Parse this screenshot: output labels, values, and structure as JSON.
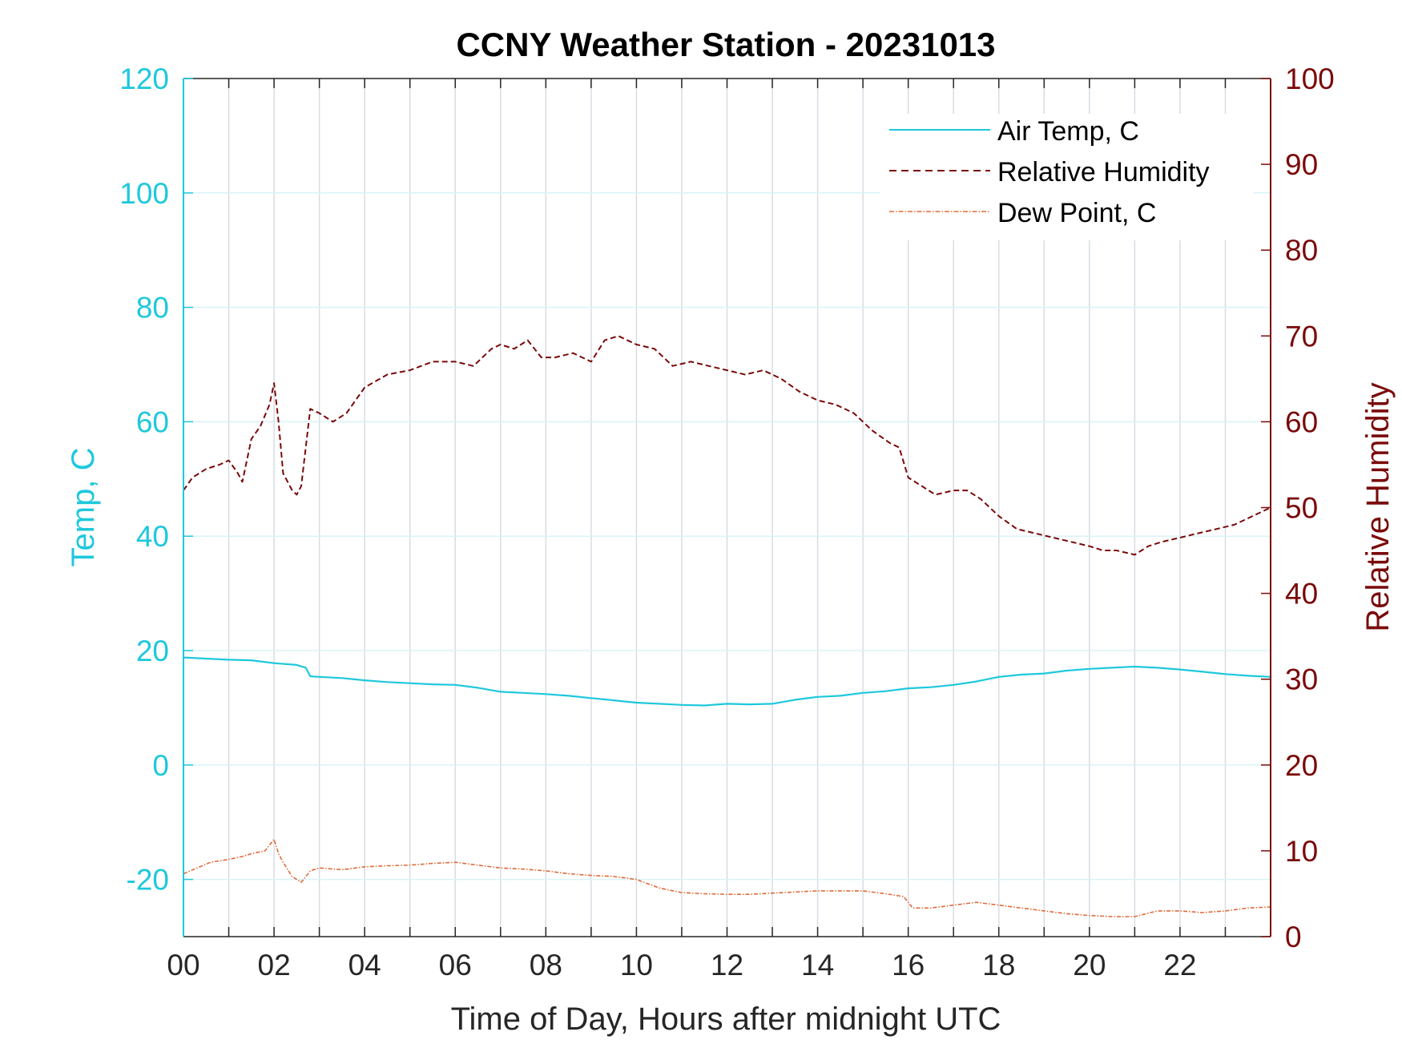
{
  "chart_data": {
    "type": "line",
    "title": "CCNY Weather Station - 20231013",
    "xlabel": "Time of Day, Hours after midnight UTC",
    "ylabel_left": "Temp, C",
    "ylabel_right": "Relative Humidity",
    "xlim": [
      0,
      24
    ],
    "ylim_left": [
      -30,
      120
    ],
    "ylim_right": [
      0,
      100
    ],
    "x_ticks": [
      0,
      2,
      4,
      6,
      8,
      10,
      12,
      14,
      16,
      18,
      20,
      22
    ],
    "x_tick_labels": [
      "00",
      "02",
      "04",
      "06",
      "08",
      "10",
      "12",
      "14",
      "16",
      "18",
      "20",
      "22"
    ],
    "y_left_ticks": [
      120,
      100,
      80,
      60,
      40,
      20,
      0,
      -20
    ],
    "y_left_tick_labels": [
      "120",
      "100",
      "80",
      "60",
      "40",
      "20",
      "0",
      "-20"
    ],
    "y_right_ticks": [
      100,
      90,
      80,
      70,
      60,
      50,
      40,
      30,
      20,
      10,
      0
    ],
    "y_right_tick_labels": [
      "100",
      "90",
      "80",
      "70",
      "60",
      "50",
      "40",
      "30",
      "20",
      "10",
      "0"
    ],
    "grid": true,
    "legend_position": "top-right",
    "colors": {
      "temp": "#1ec8dc",
      "rh": "#7a0a0a",
      "dew": "#e06a3a",
      "grid_v": "#d6dde3",
      "grid_h": "#d9f3f8"
    },
    "series": [
      {
        "name": "Air Temp, C",
        "axis": "left",
        "style": "solid",
        "x": [
          0,
          0.5,
          1,
          1.5,
          2,
          2.5,
          2.7,
          2.8,
          3,
          3.5,
          4,
          4.5,
          5,
          5.5,
          6,
          6.5,
          7,
          7.5,
          8,
          8.5,
          9,
          9.5,
          10,
          10.5,
          11,
          11.5,
          12,
          12.5,
          13,
          13.5,
          14,
          14.5,
          15,
          15.5,
          16,
          16.5,
          17,
          17.5,
          18,
          18.5,
          19,
          19.5,
          20,
          20.5,
          21,
          21.5,
          22,
          22.5,
          23,
          23.5,
          24
        ],
        "values": [
          18.8,
          18.6,
          18.4,
          18.3,
          17.8,
          17.5,
          17.0,
          15.5,
          15.4,
          15.2,
          14.8,
          14.5,
          14.3,
          14.1,
          14.0,
          13.5,
          12.8,
          12.6,
          12.4,
          12.1,
          11.7,
          11.3,
          10.9,
          10.7,
          10.5,
          10.4,
          10.7,
          10.6,
          10.7,
          11.4,
          11.9,
          12.1,
          12.6,
          12.9,
          13.4,
          13.6,
          14.0,
          14.6,
          15.4,
          15.8,
          16.0,
          16.5,
          16.8,
          17.0,
          17.2,
          17.0,
          16.7,
          16.3,
          15.9,
          15.6,
          15.4
        ]
      },
      {
        "name": "Relative Humidity",
        "axis": "right",
        "style": "dashed",
        "x": [
          0,
          0.2,
          0.5,
          0.8,
          1.0,
          1.2,
          1.3,
          1.5,
          1.7,
          1.9,
          2.0,
          2.1,
          2.2,
          2.4,
          2.5,
          2.6,
          2.8,
          3.0,
          3.3,
          3.6,
          4.0,
          4.5,
          5.0,
          5.5,
          6.0,
          6.4,
          6.8,
          7.0,
          7.3,
          7.6,
          7.9,
          8.2,
          8.6,
          9.0,
          9.3,
          9.6,
          10.0,
          10.4,
          10.8,
          11.2,
          11.6,
          12.0,
          12.4,
          12.8,
          13.2,
          13.6,
          14.0,
          14.4,
          14.8,
          15.2,
          15.6,
          15.8,
          16.0,
          16.3,
          16.6,
          17.0,
          17.3,
          17.6,
          18.0,
          18.4,
          18.8,
          19.2,
          19.6,
          20.0,
          20.3,
          20.6,
          21.0,
          21.3,
          21.6,
          22.0,
          22.4,
          22.8,
          23.2,
          23.6,
          24.0
        ],
        "values": [
          52.0,
          53.5,
          54.5,
          55.0,
          55.5,
          54.0,
          53.0,
          58.0,
          59.5,
          62.0,
          64.5,
          60.0,
          54.0,
          52.0,
          51.5,
          52.5,
          61.5,
          61.0,
          60.0,
          61.0,
          64.0,
          65.5,
          66.0,
          67.0,
          67.0,
          66.5,
          68.5,
          69.0,
          68.5,
          69.5,
          67.5,
          67.5,
          68.0,
          67.0,
          69.5,
          70.0,
          69.0,
          68.5,
          66.5,
          67.0,
          66.5,
          66.0,
          65.5,
          66.0,
          65.0,
          63.5,
          62.5,
          62.0,
          61.0,
          59.0,
          57.5,
          57.0,
          53.5,
          52.5,
          51.5,
          52.0,
          52.0,
          51.0,
          49.0,
          47.5,
          47.0,
          46.5,
          46.0,
          45.5,
          45.0,
          45.0,
          44.5,
          45.5,
          46.0,
          46.5,
          47.0,
          47.5,
          48.0,
          49.0,
          50.0
        ]
      },
      {
        "name": "Dew Point, C",
        "axis": "left",
        "style": "dash-dot",
        "x": [
          0,
          0.3,
          0.6,
          1.0,
          1.3,
          1.5,
          1.8,
          2.0,
          2.1,
          2.2,
          2.4,
          2.6,
          2.8,
          3.0,
          3.5,
          4.0,
          4.5,
          5.0,
          5.5,
          6.0,
          6.5,
          7.0,
          7.5,
          8.0,
          8.5,
          9.0,
          9.5,
          10.0,
          10.5,
          11.0,
          11.5,
          12.0,
          12.5,
          13.0,
          13.5,
          14.0,
          14.5,
          15.0,
          15.5,
          15.9,
          16.1,
          16.5,
          17.0,
          17.5,
          18.0,
          18.5,
          19.0,
          19.5,
          20.0,
          20.5,
          21.0,
          21.5,
          22.0,
          22.5,
          23.0,
          23.5,
          24.0
        ],
        "values": [
          -19.0,
          -18.0,
          -17.0,
          -16.5,
          -16.0,
          -15.5,
          -15.0,
          -13.0,
          -15.5,
          -17.0,
          -19.5,
          -20.5,
          -18.5,
          -18.0,
          -18.3,
          -17.8,
          -17.6,
          -17.5,
          -17.2,
          -17.0,
          -17.5,
          -18.0,
          -18.2,
          -18.5,
          -19.0,
          -19.3,
          -19.5,
          -20.0,
          -21.5,
          -22.3,
          -22.5,
          -22.6,
          -22.6,
          -22.4,
          -22.2,
          -22.0,
          -22.0,
          -22.0,
          -22.5,
          -23.0,
          -25.0,
          -25.0,
          -24.5,
          -24.0,
          -24.5,
          -25.0,
          -25.5,
          -26.0,
          -26.3,
          -26.5,
          -26.5,
          -25.5,
          -25.5,
          -25.8,
          -25.5,
          -25.0,
          -24.8
        ]
      }
    ]
  }
}
